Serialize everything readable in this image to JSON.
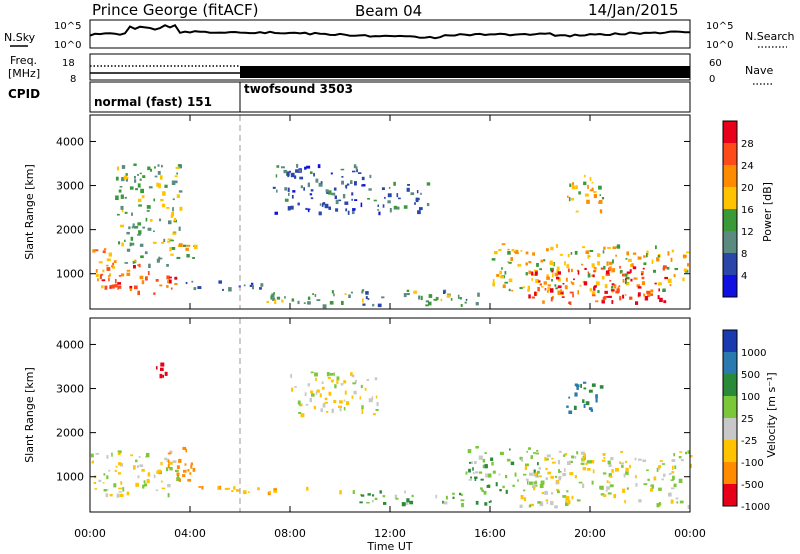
{
  "header": {
    "station": "Prince George (fitACF)",
    "beam": "Beam 04",
    "date": "14/Jan/2015"
  },
  "noise_panel": {
    "left_label": "N.Sky",
    "right_label": "N.Search",
    "left_ticks": [
      "10^5",
      "10^0"
    ],
    "right_ticks": [
      "10^5",
      "10^0"
    ]
  },
  "freq_panel": {
    "left_label_1": "Freq.",
    "left_label_2": "[MHz]",
    "right_label": "Nave",
    "left_ticks": [
      "18",
      "8"
    ],
    "right_ticks": [
      "60",
      "0"
    ]
  },
  "cpid_panel": {
    "label": "CPID",
    "programs": [
      {
        "name": "normal (fast) 151",
        "start_hour": 0,
        "end_hour": 6
      },
      {
        "name": "twofsound 3503",
        "start_hour": 6,
        "end_hour": 24
      }
    ]
  },
  "power_colorbar": {
    "label": "Power [dB]",
    "ticks": [
      "28",
      "24",
      "20",
      "16",
      "12",
      "8",
      "4"
    ],
    "colors": [
      "#e8001a",
      "#ff4a1a",
      "#ff8c00",
      "#ffc300",
      "#3a9a3a",
      "#5a8a80",
      "#2a46a8",
      "#1010e0"
    ]
  },
  "velocity_colorbar": {
    "label": "Velocity [m s⁻¹]",
    "ticks": [
      "1000",
      "500",
      "100",
      "25",
      "-25",
      "-100",
      "-500",
      "-1000"
    ],
    "colors": [
      "#1a3ab0",
      "#2a7ab0",
      "#2a8a3a",
      "#7ac83a",
      "#c8c8c8",
      "#ffc300",
      "#ff8c00",
      "#e8001a"
    ]
  },
  "axes": {
    "ylabel": "Slant Range [km]",
    "xlabel": "Time UT",
    "yticks": [
      "4000",
      "3000",
      "2000",
      "1000"
    ],
    "xticks": [
      "00:00",
      "04:00",
      "08:00",
      "12:00",
      "16:00",
      "20:00",
      "00:00"
    ]
  },
  "chart_data": {
    "type": "heatmap",
    "title": "Prince George (fitACF) Beam 04 14/Jan/2015",
    "xlabel": "Time UT",
    "ylabel": "Slant Range [km]",
    "xlim": [
      0,
      24
    ],
    "ylim": [
      200,
      4600
    ],
    "xtick_hours": [
      0,
      4,
      8,
      12,
      16,
      20,
      24
    ],
    "ytick_values": [
      1000,
      2000,
      3000,
      4000
    ],
    "mode_change_hour": 6,
    "power_bins": [
      28,
      24,
      20,
      16,
      12,
      8,
      4
    ],
    "velocity_bins": [
      1000,
      500,
      100,
      25,
      -25,
      -100,
      -500,
      -1000
    ],
    "power_regions": [
      {
        "t0": 0.0,
        "t1": 1.0,
        "r0": 700,
        "r1": 1600,
        "power": 22
      },
      {
        "t0": 0.4,
        "t1": 3.4,
        "r0": 550,
        "r1": 1250,
        "power": 26
      },
      {
        "t0": 1.0,
        "t1": 3.6,
        "r0": 1200,
        "r1": 3500,
        "power": 14
      },
      {
        "t0": 3.0,
        "t1": 4.2,
        "r0": 1300,
        "r1": 1700,
        "power": 18
      },
      {
        "t0": 3.4,
        "t1": 7.0,
        "r0": 650,
        "r1": 850,
        "power": 8
      },
      {
        "t0": 7.3,
        "t1": 11.4,
        "r0": 2400,
        "r1": 3500,
        "power": 8
      },
      {
        "t0": 7.0,
        "t1": 15.5,
        "r0": 300,
        "r1": 650,
        "power": 12
      },
      {
        "t0": 11.4,
        "t1": 13.5,
        "r0": 2400,
        "r1": 3100,
        "power": 8
      },
      {
        "t0": 16.0,
        "t1": 24.0,
        "r0": 600,
        "r1": 1700,
        "power": 18
      },
      {
        "t0": 17.5,
        "t1": 23.0,
        "r0": 350,
        "r1": 1200,
        "power": 28
      },
      {
        "t0": 19.0,
        "t1": 20.5,
        "r0": 2400,
        "r1": 3300,
        "power": 18
      }
    ],
    "velocity_regions": [
      {
        "t0": 0.0,
        "t1": 3.5,
        "r0": 600,
        "r1": 1600,
        "velocity": 0
      },
      {
        "t0": 3.0,
        "t1": 4.2,
        "r0": 900,
        "r1": 1700,
        "velocity": -300
      },
      {
        "t0": 2.6,
        "t1": 3.0,
        "r0": 3200,
        "r1": 3600,
        "velocity": -800
      },
      {
        "t0": 4.0,
        "t1": 10.0,
        "r0": 650,
        "r1": 800,
        "velocity": -100
      },
      {
        "t0": 8.0,
        "t1": 11.5,
        "r0": 2400,
        "r1": 3400,
        "velocity": 0
      },
      {
        "t0": 10.0,
        "t1": 16.0,
        "r0": 400,
        "r1": 700,
        "velocity": 80
      },
      {
        "t0": 15.0,
        "t1": 18.0,
        "r0": 700,
        "r1": 1700,
        "velocity": 80
      },
      {
        "t0": 17.0,
        "t1": 24.0,
        "r0": 350,
        "r1": 1600,
        "velocity": 0
      },
      {
        "t0": 19.0,
        "t1": 20.5,
        "r0": 2500,
        "r1": 3200,
        "velocity": 500
      }
    ]
  }
}
